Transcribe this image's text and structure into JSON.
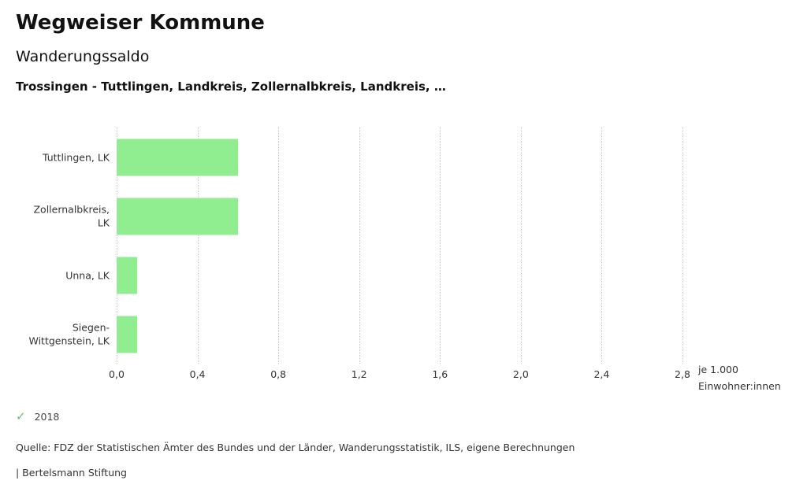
{
  "header": {
    "title": "Wegweiser Kommune",
    "subtitle": "Wanderungssaldo",
    "description": "Trossingen - Tuttlingen, Landkreis, Zollernalbkreis, Landkreis, …"
  },
  "chart_data": {
    "type": "bar",
    "orientation": "horizontal",
    "title": "Wanderungssaldo",
    "subtitle": "Trossingen - Tuttlingen, Landkreis, Zollernalbkreis, Landkreis, …",
    "categories": [
      "Tuttlingen, LK",
      "Zollernalbkreis, LK",
      "Unna, LK",
      "Siegen-Wittgenstein, LK"
    ],
    "values": [
      0.6,
      0.6,
      0.1,
      0.1
    ],
    "series_name": "2018",
    "x_ticks": [
      "0,0",
      "0,4",
      "0,8",
      "1,2",
      "1,6",
      "2,0",
      "2,4",
      "2,8"
    ],
    "x_tick_values": [
      0.0,
      0.4,
      0.8,
      1.2,
      1.6,
      2.0,
      2.4,
      2.8
    ],
    "xlim": [
      0,
      2.8
    ],
    "x_unit_line1": "je 1.000",
    "x_unit_line2": "Einwohner:innen",
    "bar_color": "#90ee90",
    "grid": "dotted-vertical",
    "legend_position": "bottom-left"
  },
  "legend": {
    "year": "2018",
    "check_color": "#62c073"
  },
  "footer": {
    "source": "Quelle: FDZ der Statistischen Ämter des Bundes und der Länder, Wanderungsstatistik, ILS, eigene Berechnungen",
    "branding": "| Bertelsmann Stiftung"
  }
}
